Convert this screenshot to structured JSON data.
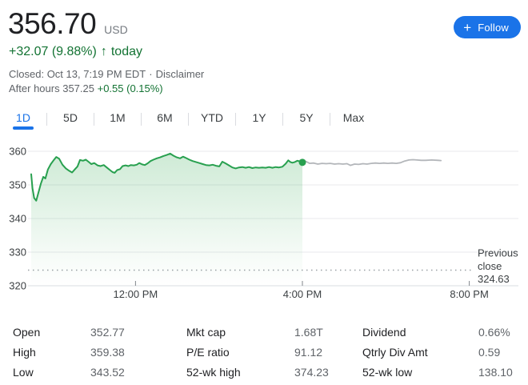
{
  "header": {
    "price": "356.70",
    "currency": "USD",
    "change": {
      "amount": "+32.07 (9.88%)",
      "arrow": "↑",
      "suffix": "today"
    },
    "closed": {
      "text": "Closed: Oct 13, 7:19 PM EDT",
      "separator": "·",
      "disclaimer": "Disclaimer"
    },
    "after_hours": {
      "label": "After hours",
      "price": "357.25",
      "change": "+0.55 (0.15%)"
    },
    "follow": {
      "plus": "+",
      "label": "Follow"
    },
    "colors": {
      "positive_green": "#137333",
      "accent_blue": "#1a73e8"
    }
  },
  "tabs": {
    "items": [
      "1D",
      "5D",
      "1M",
      "6M",
      "YTD",
      "1Y",
      "5Y",
      "Max"
    ],
    "active": "1D"
  },
  "chart_data": {
    "type": "area",
    "x_axis": {
      "ticks": [
        {
          "t": 12,
          "label": "12:00 PM"
        },
        {
          "t": 16,
          "label": "4:00 PM"
        },
        {
          "t": 20,
          "label": "8:00 PM"
        }
      ],
      "range_hours": [
        9.5,
        21.25
      ]
    },
    "y_axis": {
      "ticks": [
        360,
        350,
        340,
        330,
        320
      ],
      "range": [
        318,
        362
      ]
    },
    "previous_close": {
      "value": 324.63,
      "label_lines": [
        "Previous",
        "close",
        "324.63"
      ]
    },
    "close_marker": {
      "t": 16,
      "value": 356.7
    },
    "colors": {
      "line": "#28a04f",
      "after_hours_line": "#b3b6ba",
      "grid": "#e8eaed",
      "axis": "#dadce0",
      "dotted": "#9aa0a6",
      "tick_text": "#3c4043"
    },
    "series": [
      {
        "name": "regular",
        "points": [
          [
            9.5,
            353.2
          ],
          [
            9.53,
            349.0
          ],
          [
            9.57,
            346.1
          ],
          [
            9.62,
            345.3
          ],
          [
            9.67,
            347.6
          ],
          [
            9.73,
            350.3
          ],
          [
            9.79,
            352.4
          ],
          [
            9.84,
            351.9
          ],
          [
            9.9,
            354.6
          ],
          [
            9.97,
            356.2
          ],
          [
            10.03,
            357.2
          ],
          [
            10.1,
            358.3
          ],
          [
            10.17,
            357.8
          ],
          [
            10.25,
            356.0
          ],
          [
            10.33,
            354.9
          ],
          [
            10.41,
            354.2
          ],
          [
            10.48,
            353.7
          ],
          [
            10.55,
            354.7
          ],
          [
            10.61,
            355.5
          ],
          [
            10.67,
            357.4
          ],
          [
            10.74,
            357.2
          ],
          [
            10.81,
            357.5
          ],
          [
            10.88,
            356.8
          ],
          [
            10.94,
            356.2
          ],
          [
            11.01,
            356.5
          ],
          [
            11.09,
            355.8
          ],
          [
            11.16,
            355.6
          ],
          [
            11.24,
            355.9
          ],
          [
            11.31,
            355.2
          ],
          [
            11.38,
            354.5
          ],
          [
            11.45,
            353.8
          ],
          [
            11.5,
            353.6
          ],
          [
            11.56,
            354.4
          ],
          [
            11.63,
            354.7
          ],
          [
            11.69,
            355.6
          ],
          [
            11.76,
            355.8
          ],
          [
            11.83,
            355.6
          ],
          [
            11.89,
            355.9
          ],
          [
            11.96,
            355.8
          ],
          [
            12.03,
            356.0
          ],
          [
            12.09,
            356.5
          ],
          [
            12.16,
            356.1
          ],
          [
            12.22,
            355.9
          ],
          [
            12.29,
            356.4
          ],
          [
            12.36,
            357.1
          ],
          [
            12.43,
            357.5
          ],
          [
            12.51,
            357.9
          ],
          [
            12.59,
            358.2
          ],
          [
            12.67,
            358.6
          ],
          [
            12.75,
            358.9
          ],
          [
            12.83,
            359.3
          ],
          [
            12.91,
            358.7
          ],
          [
            12.99,
            358.2
          ],
          [
            13.07,
            357.9
          ],
          [
            13.14,
            358.4
          ],
          [
            13.21,
            358.0
          ],
          [
            13.29,
            357.5
          ],
          [
            13.37,
            357.1
          ],
          [
            13.45,
            356.8
          ],
          [
            13.53,
            356.5
          ],
          [
            13.61,
            356.2
          ],
          [
            13.69,
            355.9
          ],
          [
            13.77,
            355.8
          ],
          [
            13.85,
            356.0
          ],
          [
            13.93,
            355.7
          ],
          [
            14.01,
            355.5
          ],
          [
            14.08,
            356.9
          ],
          [
            14.16,
            356.4
          ],
          [
            14.24,
            355.8
          ],
          [
            14.32,
            355.2
          ],
          [
            14.4,
            354.9
          ],
          [
            14.48,
            355.2
          ],
          [
            14.56,
            355.3
          ],
          [
            14.64,
            355.1
          ],
          [
            14.72,
            355.3
          ],
          [
            14.8,
            355.0
          ],
          [
            14.88,
            355.2
          ],
          [
            14.96,
            355.1
          ],
          [
            15.04,
            355.2
          ],
          [
            15.12,
            355.1
          ],
          [
            15.2,
            355.3
          ],
          [
            15.28,
            355.1
          ],
          [
            15.36,
            355.3
          ],
          [
            15.44,
            355.2
          ],
          [
            15.52,
            355.4
          ],
          [
            15.6,
            356.3
          ],
          [
            15.66,
            357.3
          ],
          [
            15.71,
            356.8
          ],
          [
            15.76,
            356.6
          ],
          [
            15.82,
            356.8
          ],
          [
            15.88,
            357.2
          ],
          [
            15.94,
            357.0
          ],
          [
            16.0,
            356.7
          ]
        ]
      },
      {
        "name": "after_hours",
        "points": [
          [
            16.0,
            356.7
          ],
          [
            16.08,
            357.0
          ],
          [
            16.17,
            356.4
          ],
          [
            16.27,
            356.5
          ],
          [
            16.37,
            356.2
          ],
          [
            16.47,
            356.4
          ],
          [
            16.57,
            356.3
          ],
          [
            16.67,
            356.4
          ],
          [
            16.77,
            356.2
          ],
          [
            16.87,
            356.3
          ],
          [
            16.97,
            356.2
          ],
          [
            17.07,
            356.3
          ],
          [
            17.15,
            355.8
          ],
          [
            17.25,
            356.2
          ],
          [
            17.35,
            356.1
          ],
          [
            17.45,
            356.3
          ],
          [
            17.55,
            356.2
          ],
          [
            17.65,
            356.4
          ],
          [
            17.75,
            356.5
          ],
          [
            17.85,
            356.4
          ],
          [
            17.95,
            356.5
          ],
          [
            18.05,
            356.4
          ],
          [
            18.15,
            356.5
          ],
          [
            18.25,
            356.4
          ],
          [
            18.35,
            356.6
          ],
          [
            18.45,
            357.1
          ],
          [
            18.55,
            357.4
          ],
          [
            18.65,
            357.5
          ],
          [
            18.75,
            357.4
          ],
          [
            18.85,
            357.3
          ],
          [
            18.95,
            357.3
          ],
          [
            19.1,
            357.4
          ],
          [
            19.25,
            357.3
          ],
          [
            19.32,
            357.25
          ]
        ]
      }
    ]
  },
  "stats": {
    "rows": [
      [
        {
          "label": "Open",
          "value": "352.77"
        },
        {
          "label": "Mkt cap",
          "value": "1.68T"
        },
        {
          "label": "Dividend",
          "value": "0.66%"
        }
      ],
      [
        {
          "label": "High",
          "value": "359.38"
        },
        {
          "label": "P/E ratio",
          "value": "91.12"
        },
        {
          "label": "Qtrly Div Amt",
          "value": "0.59"
        }
      ],
      [
        {
          "label": "Low",
          "value": "343.52"
        },
        {
          "label": "52-wk high",
          "value": "374.23"
        },
        {
          "label": "52-wk low",
          "value": "138.10"
        }
      ]
    ]
  }
}
